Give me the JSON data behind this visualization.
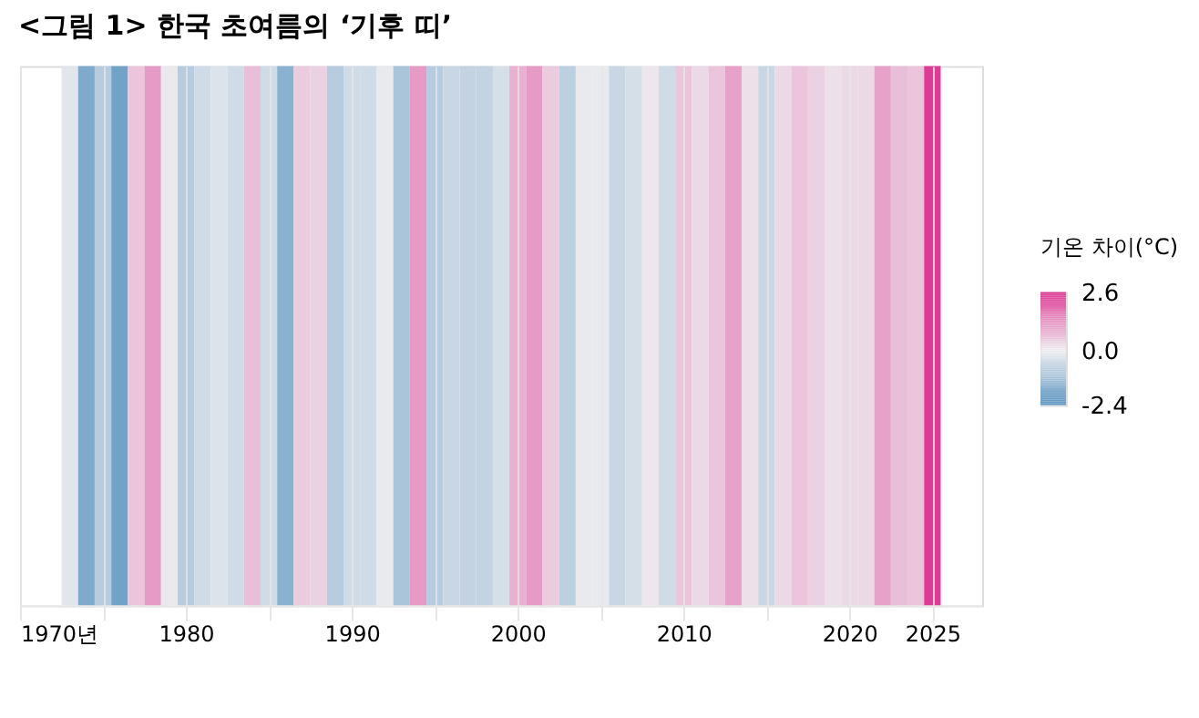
{
  "chart_data": {
    "type": "heatmap",
    "title": "<그림 1> 한국 초여름의 ‘기후 띠’",
    "clabel": "기온 차이(°C)",
    "x": [
      1973,
      1974,
      1975,
      1976,
      1977,
      1978,
      1979,
      1980,
      1981,
      1982,
      1983,
      1984,
      1985,
      1986,
      1987,
      1988,
      1989,
      1990,
      1991,
      1992,
      1993,
      1994,
      1995,
      1996,
      1997,
      1998,
      1999,
      2000,
      2001,
      2002,
      2003,
      2004,
      2005,
      2006,
      2007,
      2008,
      2009,
      2010,
      2011,
      2012,
      2013,
      2014,
      2015,
      2016,
      2017,
      2018,
      2019,
      2020,
      2021,
      2022,
      2023,
      2024,
      2025
    ],
    "y_categories": [
      null
    ],
    "cells": [
      [
        -0.2,
        -1.8,
        -0.9,
        -2.0,
        0.6,
        1.2,
        -0.1,
        -0.9,
        -0.5,
        -0.3,
        -0.5,
        0.7,
        -0.5,
        -1.6,
        0.5,
        0.4,
        -0.9,
        -0.5,
        -0.5,
        -0.1,
        -1.1,
        1.2,
        -0.9,
        -0.6,
        -0.7,
        -0.7,
        -0.4,
        0.9,
        1.2,
        0.5,
        -0.8,
        -0.1,
        -0.1,
        -0.6,
        -0.4,
        0.1,
        -0.5,
        0.6,
        0.3,
        0.6,
        1.1,
        0.2,
        -0.6,
        0.3,
        0.6,
        0.4,
        0.2,
        0.3,
        0.3,
        1.1,
        0.7,
        0.6,
        2.6
      ]
    ],
    "xlim": [
      1970,
      2028
    ],
    "xticks": [
      {
        "value": 1970,
        "label": "1970년"
      },
      {
        "value": 1975,
        "label": null
      },
      1980,
      {
        "value": 1985,
        "label": null
      },
      1990,
      {
        "value": 1995,
        "label": null
      },
      2000,
      {
        "value": 2005,
        "label": null
      },
      2010,
      {
        "value": 2015,
        "label": null
      },
      2020,
      2025
    ],
    "clim": [
      -2.4,
      2.6
    ],
    "cticks": [
      -2.4,
      {
        "value": 0,
        "label": "0.0"
      },
      2.6
    ],
    "grid": "x"
  }
}
